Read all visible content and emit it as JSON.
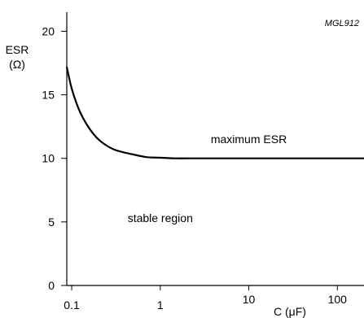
{
  "chart_data": {
    "type": "line",
    "figure_id": "MGL912",
    "ylabel_line1": "ESR",
    "ylabel_line2": "(Ω)",
    "xlabel": "C (μF)",
    "xscale": "log",
    "xlim": [
      0.088,
      200
    ],
    "ylim": [
      0,
      21.5
    ],
    "yticks": [
      0,
      5,
      10,
      15,
      20
    ],
    "yticklabels": [
      "0",
      "5",
      "10",
      "15",
      "20"
    ],
    "xticks": [
      0.1,
      1,
      10,
      100
    ],
    "xticklabels": [
      "0.1",
      "1",
      "10",
      "100"
    ],
    "grid": false,
    "series": [
      {
        "name": "maximum ESR",
        "x": [
          0.088,
          0.1,
          0.12,
          0.15,
          0.2,
          0.3,
          0.5,
          0.7,
          1.0,
          1.5,
          2,
          5,
          10,
          50,
          100,
          200
        ],
        "y": [
          17.2,
          15.5,
          13.9,
          12.6,
          11.5,
          10.7,
          10.3,
          10.1,
          10.05,
          10.0,
          10.0,
          10.0,
          10.0,
          10.0,
          10.0,
          10.0
        ]
      }
    ],
    "annotations": [
      {
        "text": "maximum ESR",
        "x": 10,
        "y": 11.2
      },
      {
        "text": "stable region",
        "x": 1,
        "y": 5
      }
    ]
  }
}
